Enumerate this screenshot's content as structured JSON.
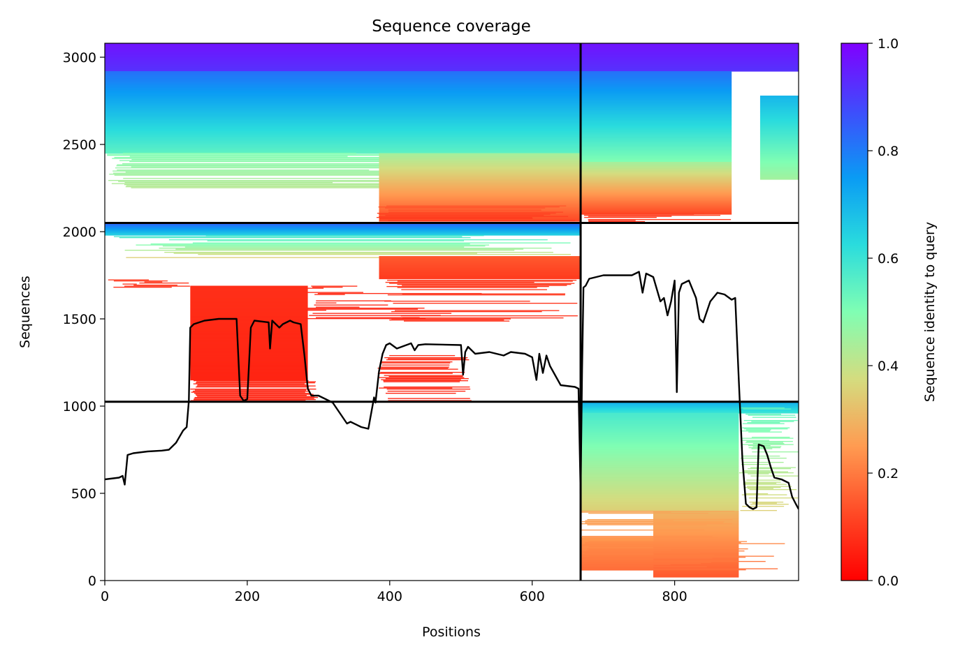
{
  "chart_data": {
    "type": "heatmap",
    "title": "Sequence coverage",
    "xlabel": "Positions",
    "ylabel": "Sequences",
    "xlim": [
      0,
      974
    ],
    "ylim": [
      0,
      3080
    ],
    "xticks": [
      0,
      200,
      400,
      600,
      800
    ],
    "yticks": [
      0,
      500,
      1000,
      1500,
      2000,
      2500,
      3000
    ],
    "grid": false,
    "colorbar": {
      "label": "Sequence identity to query",
      "range": [
        0,
        1
      ],
      "ticks": [
        "0.0",
        "0.2",
        "0.4",
        "0.6",
        "0.8",
        "1.0"
      ],
      "colormap": "rainbow_r"
    },
    "chain_boundaries": {
      "x": [
        668
      ],
      "y": [
        1025,
        2050
      ]
    },
    "coverage_blocks": [
      {
        "x0": 0,
        "x1": 668,
        "y0": 2050,
        "y1": 3080,
        "fill": "full-width at top, right half only below ~2400",
        "identity_top": 1.0,
        "identity_bottom": 0.1
      },
      {
        "x0": 668,
        "x1": 974,
        "y0": 2050,
        "y1": 3080,
        "fill": "mostly full, gap around 890-920",
        "identity_top": 1.0,
        "identity_bottom": 0.1
      },
      {
        "x0": 0,
        "x1": 668,
        "y0": 1025,
        "y1": 2050,
        "fill": "sparse, dense red block 118-280",
        "identity_top": 0.85,
        "identity_bottom": 0.05
      },
      {
        "x0": 668,
        "x1": 974,
        "y0": 0,
        "y1": 1025,
        "fill": "dense",
        "identity_top": 0.7,
        "identity_bottom": 0.15
      }
    ],
    "series": [
      {
        "type": "line",
        "color": "#000000",
        "x": [
          0,
          20,
          25,
          28,
          32,
          40,
          60,
          80,
          90,
          100,
          110,
          115,
          118,
          120,
          125,
          140,
          160,
          185,
          190,
          195,
          200,
          205,
          210,
          230,
          232,
          235,
          245,
          250,
          260,
          265,
          275,
          280,
          285,
          290,
          300,
          320,
          340,
          345,
          360,
          370,
          378,
          380,
          385,
          390,
          395,
          400,
          410,
          430,
          435,
          440,
          450,
          500,
          503,
          506,
          510,
          520,
          540,
          560,
          570,
          590,
          600,
          606,
          610,
          615,
          620,
          625,
          640,
          660,
          665,
          668,
          670,
          672,
          675,
          680,
          700,
          740,
          750,
          755,
          760,
          770,
          780,
          785,
          790,
          795,
          800,
          803,
          806,
          810,
          820,
          830,
          835,
          840,
          850,
          860,
          870,
          880,
          885,
          890,
          895,
          900,
          905,
          910,
          915,
          918,
          925,
          930,
          935,
          940,
          950,
          960,
          965,
          970,
          974
        ],
        "y": [
          580,
          590,
          600,
          550,
          720,
          730,
          740,
          745,
          750,
          790,
          860,
          880,
          1030,
          1450,
          1470,
          1490,
          1500,
          1500,
          1060,
          1030,
          1040,
          1450,
          1490,
          1480,
          1330,
          1490,
          1450,
          1470,
          1490,
          1480,
          1470,
          1300,
          1100,
          1060,
          1060,
          1020,
          900,
          910,
          880,
          870,
          1050,
          1020,
          1200,
          1300,
          1350,
          1360,
          1330,
          1360,
          1320,
          1350,
          1355,
          1350,
          1180,
          1310,
          1340,
          1300,
          1310,
          1290,
          1310,
          1300,
          1280,
          1150,
          1300,
          1190,
          1290,
          1230,
          1120,
          1110,
          1100,
          500,
          1200,
          1680,
          1690,
          1730,
          1750,
          1750,
          1770,
          1650,
          1760,
          1740,
          1600,
          1620,
          1520,
          1600,
          1720,
          1080,
          1650,
          1700,
          1720,
          1620,
          1500,
          1480,
          1600,
          1650,
          1640,
          1610,
          1620,
          1150,
          700,
          440,
          420,
          410,
          420,
          780,
          770,
          720,
          650,
          590,
          580,
          560,
          480,
          440,
          410
        ]
      }
    ]
  }
}
